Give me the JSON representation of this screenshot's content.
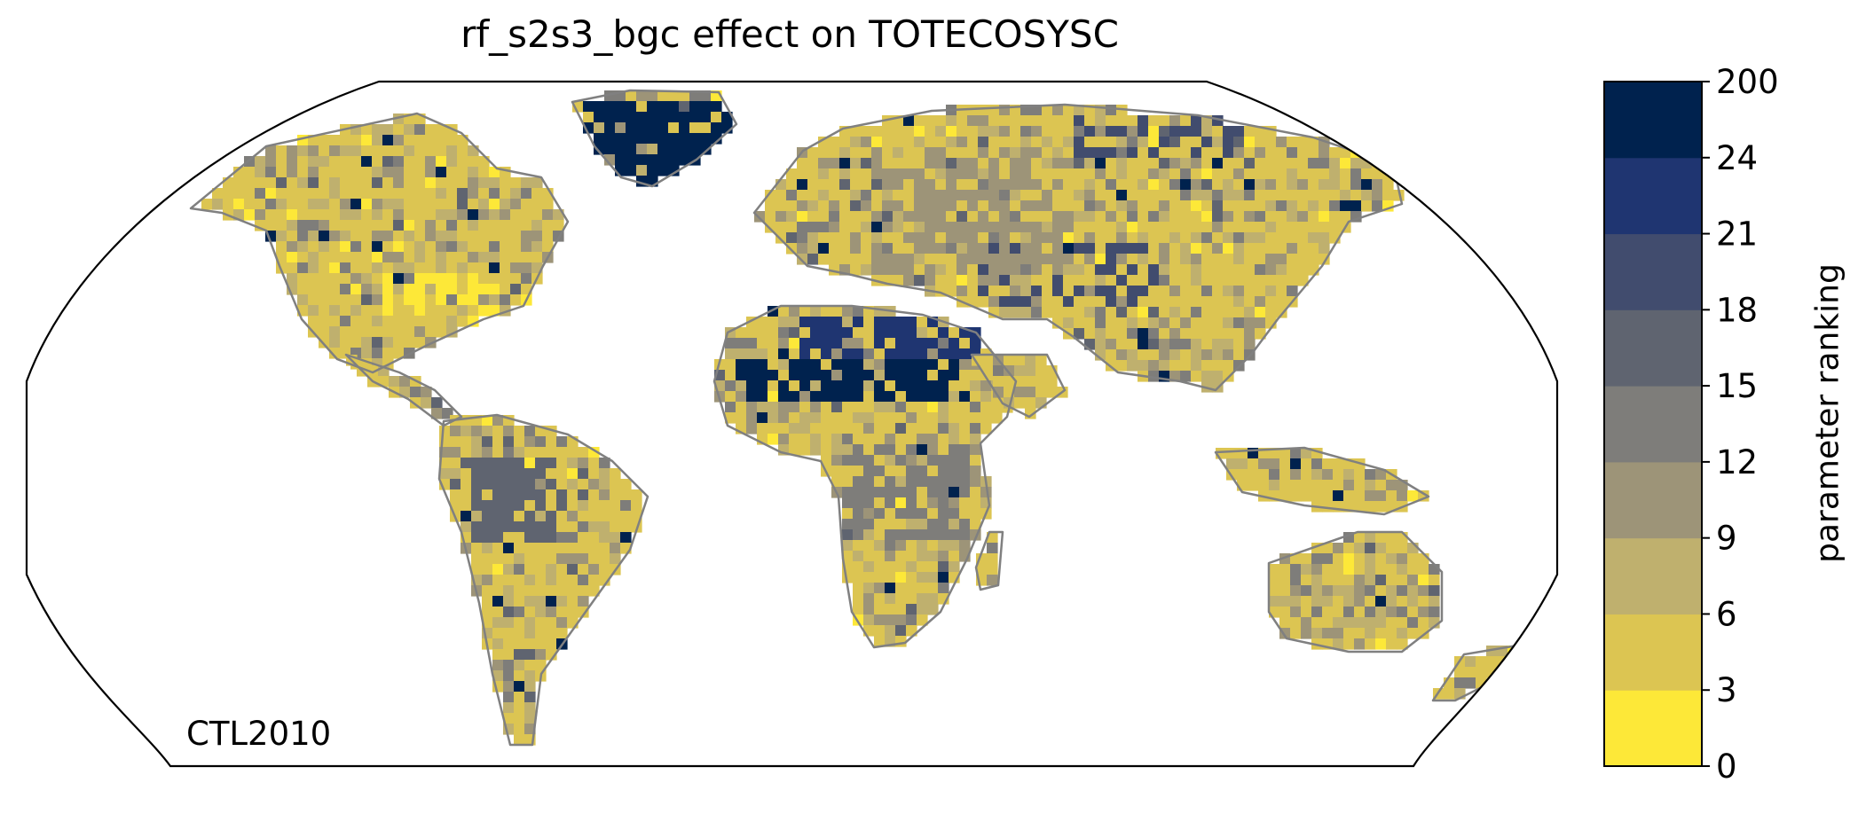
{
  "title": "rf_s2s3_bgc effect on TOTECOSYSC",
  "inset_label": "CTL2010",
  "colorbar": {
    "label": "parameter ranking",
    "ticks": [
      "0",
      "3",
      "6",
      "9",
      "12",
      "15",
      "18",
      "21",
      "24",
      "200"
    ],
    "colors": [
      "#fde838",
      "#dcc552",
      "#bfb06e",
      "#9d9478",
      "#7e7d7a",
      "#5f6470",
      "#414c6e",
      "#1f3571",
      "#00224e"
    ]
  },
  "colors": {
    "coastline": "#808080",
    "frame": "#000000",
    "land_dominant": "#dcc552"
  },
  "chart_data": {
    "type": "heatmap",
    "title": "rf_s2s3_bgc effect on TOTECOSYSC",
    "projection": "Robinson",
    "annotation": "CTL2010",
    "colorbar_label": "parameter ranking",
    "bin_edges": [
      0,
      3,
      6,
      9,
      12,
      15,
      18,
      21,
      24,
      200
    ],
    "regions": [
      {
        "name": "Greenland",
        "bin": 8
      },
      {
        "name": "Sahara",
        "bin": 8
      },
      {
        "name": "Amazon",
        "bin": 5
      },
      {
        "name": "Central Africa",
        "bin": 4
      },
      {
        "name": "Central Asia",
        "bin": 6
      },
      {
        "name": "Eastern United States",
        "bin": 0
      },
      {
        "name": "Australia",
        "bin": 1
      },
      {
        "name": "Europe",
        "bin": 3
      }
    ]
  }
}
